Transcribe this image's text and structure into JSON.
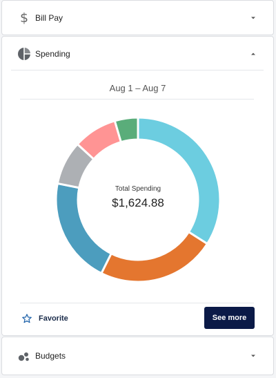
{
  "bill_pay": {
    "label": "Bill Pay",
    "icon": "dollar-icon"
  },
  "spending": {
    "label": "Spending",
    "icon": "pie-chart-icon",
    "date_range": "Aug 1 – Aug 7",
    "total_label": "Total Spending",
    "total_amount": "$1,624.88",
    "favorite_label": "Favorite",
    "see_more_label": "See more"
  },
  "budgets": {
    "label": "Budgets",
    "icon": "bubbles-icon"
  },
  "chart_data": {
    "type": "pie",
    "donut": true,
    "title": "",
    "slices": [
      {
        "value": 33.5,
        "color": "#6ccde0"
      },
      {
        "value": 23.0,
        "color": "#e4762f"
      },
      {
        "value": 20.5,
        "color": "#4c9dbe"
      },
      {
        "value": 8.5,
        "color": "#adb0b4"
      },
      {
        "value": 8.5,
        "color": "#ff9494"
      },
      {
        "value": 4.5,
        "color": "#5aad7a"
      }
    ]
  }
}
